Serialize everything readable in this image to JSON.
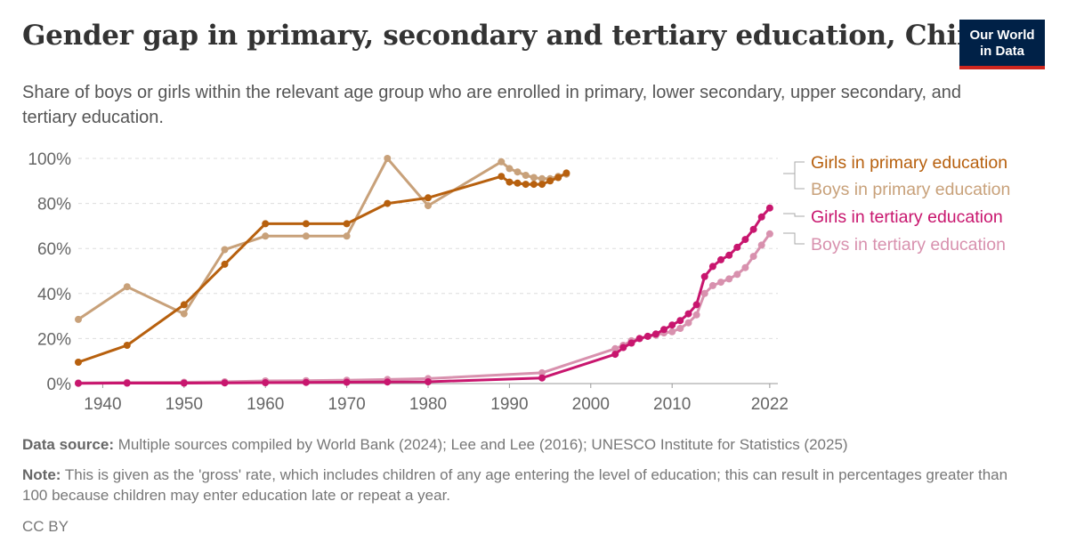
{
  "header": {
    "title": "Gender gap in primary, secondary and tertiary education, China",
    "subtitle": "Share of boys or girls within the relevant age group who are enrolled in primary, lower secondary, upper secondary, and tertiary education.",
    "logo_line1": "Our World",
    "logo_line2": "in Data"
  },
  "footer": {
    "source_label": "Data source:",
    "source_text": "Multiple sources compiled by World Bank (2024); Lee and Lee (2016); UNESCO Institute for Statistics (2025)",
    "note_label": "Note:",
    "note_text": "This is given as the 'gross' rate, which includes children of any age entering the level of education; this can result in percentages greater than 100 because children may enter education late or repeat a year.",
    "license": "CC BY"
  },
  "colors": {
    "girls_primary": "#b7600e",
    "boys_primary": "#c8a17a",
    "girls_tertiary": "#c8166e",
    "boys_tertiary": "#d891ae",
    "gridline": "#dddddd",
    "axis_text": "#666666"
  },
  "chart_data": {
    "type": "line",
    "title": "Gender gap in primary, secondary and tertiary education, China",
    "xlim": [
      1937,
      2023
    ],
    "ylim": [
      0,
      100
    ],
    "x_ticks": [
      1940,
      1950,
      1960,
      1970,
      1980,
      1990,
      2000,
      2010,
      2022
    ],
    "x_tick_labels": [
      "1940",
      "1950",
      "1960",
      "1970",
      "1980",
      "1990",
      "2000",
      "2010",
      "2022"
    ],
    "y_ticks": [
      0,
      20,
      40,
      60,
      80,
      100
    ],
    "y_tick_labels": [
      "0%",
      "20%",
      "40%",
      "60%",
      "80%",
      "100%"
    ],
    "grid": true,
    "legend": "right",
    "series": [
      {
        "name": "Boys in primary education",
        "color_key": "boys_primary",
        "points": [
          [
            1937,
            28.5
          ],
          [
            1943,
            43
          ],
          [
            1950,
            31
          ],
          [
            1955,
            59.5
          ],
          [
            1960,
            65.5
          ],
          [
            1965,
            65.5
          ],
          [
            1970,
            65.5
          ],
          [
            1975,
            100
          ],
          [
            1980,
            79
          ],
          [
            1989,
            98.5
          ],
          [
            1990,
            95.5
          ],
          [
            1991,
            94
          ],
          [
            1992,
            92.5
          ],
          [
            1993,
            91.5
          ],
          [
            1994,
            91
          ],
          [
            1995,
            91
          ],
          [
            1996,
            92
          ],
          [
            1997,
            93
          ]
        ]
      },
      {
        "name": "Girls in primary education",
        "color_key": "girls_primary",
        "points": [
          [
            1937,
            9.5
          ],
          [
            1943,
            17
          ],
          [
            1950,
            35
          ],
          [
            1955,
            53
          ],
          [
            1960,
            71
          ],
          [
            1965,
            71
          ],
          [
            1970,
            71
          ],
          [
            1975,
            80
          ],
          [
            1980,
            82.5
          ],
          [
            1989,
            92
          ],
          [
            1990,
            89.5
          ],
          [
            1991,
            89
          ],
          [
            1992,
            88.5
          ],
          [
            1993,
            88.5
          ],
          [
            1994,
            88.5
          ],
          [
            1995,
            90
          ],
          [
            1996,
            91.5
          ],
          [
            1997,
            93.5
          ]
        ]
      },
      {
        "name": "Boys in tertiary education",
        "color_key": "boys_tertiary",
        "points": [
          [
            1937,
            0.3
          ],
          [
            1943,
            0.5
          ],
          [
            1950,
            0.6
          ],
          [
            1955,
            0.8
          ],
          [
            1960,
            1.2
          ],
          [
            1965,
            1.3
          ],
          [
            1970,
            1.5
          ],
          [
            1975,
            1.8
          ],
          [
            1980,
            2.2
          ],
          [
            1994,
            4.8
          ],
          [
            2003,
            15.5
          ],
          [
            2004,
            17
          ],
          [
            2005,
            19
          ],
          [
            2006,
            20
          ],
          [
            2007,
            21
          ],
          [
            2008,
            21.5
          ],
          [
            2009,
            22.5
          ],
          [
            2010,
            23
          ],
          [
            2011,
            24.5
          ],
          [
            2012,
            27
          ],
          [
            2013,
            30.5
          ],
          [
            2014,
            40
          ],
          [
            2015,
            43.5
          ],
          [
            2016,
            45
          ],
          [
            2017,
            46.5
          ],
          [
            2018,
            48.5
          ],
          [
            2019,
            51.5
          ],
          [
            2020,
            56.5
          ],
          [
            2021,
            61.5
          ],
          [
            2022,
            66.5
          ]
        ]
      },
      {
        "name": "Girls in tertiary education",
        "color_key": "girls_tertiary",
        "points": [
          [
            1937,
            0.1
          ],
          [
            1943,
            0.2
          ],
          [
            1950,
            0.2
          ],
          [
            1955,
            0.3
          ],
          [
            1960,
            0.4
          ],
          [
            1965,
            0.5
          ],
          [
            1970,
            0.6
          ],
          [
            1975,
            0.7
          ],
          [
            1980,
            0.8
          ],
          [
            1994,
            2.5
          ],
          [
            2003,
            13
          ],
          [
            2004,
            16
          ],
          [
            2005,
            18
          ],
          [
            2006,
            20
          ],
          [
            2007,
            21
          ],
          [
            2008,
            22
          ],
          [
            2009,
            24
          ],
          [
            2010,
            26
          ],
          [
            2011,
            28
          ],
          [
            2012,
            31
          ],
          [
            2013,
            35
          ],
          [
            2014,
            47.5
          ],
          [
            2015,
            52
          ],
          [
            2016,
            55
          ],
          [
            2017,
            57
          ],
          [
            2018,
            60.5
          ],
          [
            2019,
            64
          ],
          [
            2020,
            68.5
          ],
          [
            2021,
            74
          ],
          [
            2022,
            78
          ]
        ]
      }
    ],
    "legend_entries": [
      {
        "label": "Girls in primary education",
        "color_key": "girls_primary"
      },
      {
        "label": "Boys in primary education",
        "color_key": "boys_primary"
      },
      {
        "label": "Girls in tertiary education",
        "color_key": "girls_tertiary"
      },
      {
        "label": "Boys in tertiary education",
        "color_key": "boys_tertiary"
      }
    ]
  }
}
